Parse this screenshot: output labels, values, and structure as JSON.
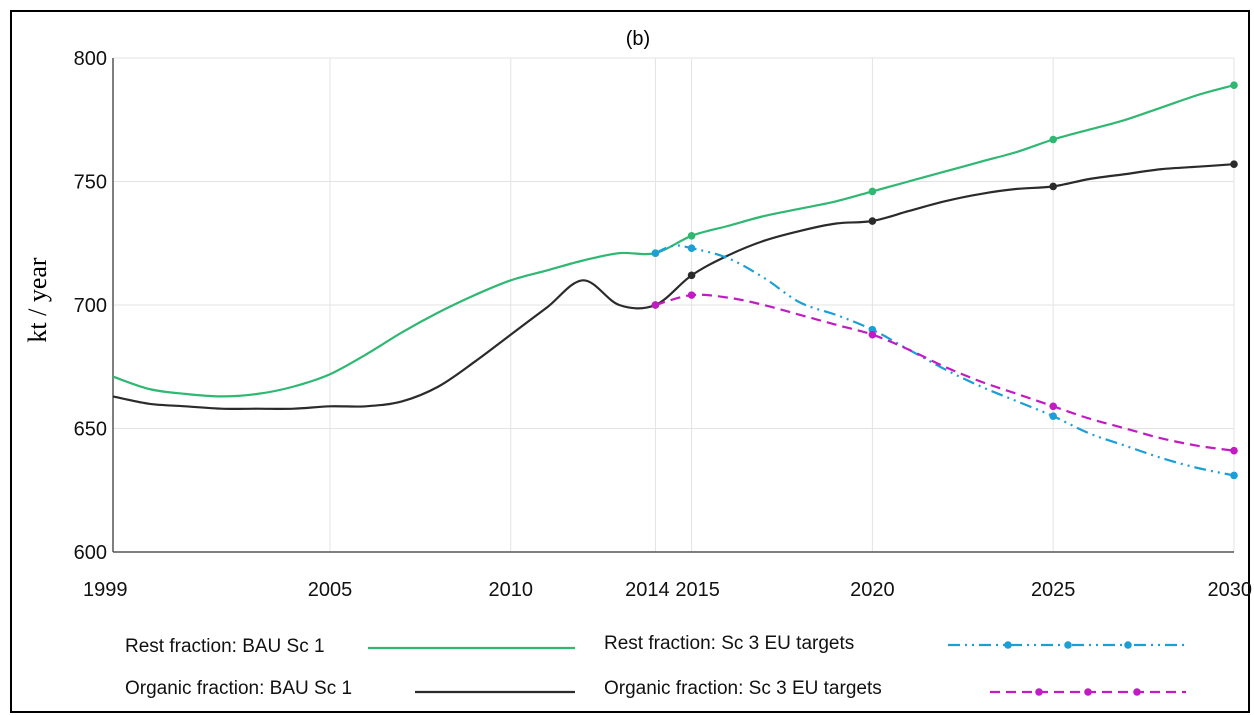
{
  "chart_data": {
    "type": "line",
    "title": "(b)",
    "ylabel": "kt / year",
    "xlabel": "",
    "xlim": [
      1999,
      2030
    ],
    "ylim": [
      600,
      800
    ],
    "x_ticks": [
      1999,
      2005,
      2010,
      2014,
      2015,
      2020,
      2025,
      2030
    ],
    "y_ticks": [
      600,
      650,
      700,
      750,
      800
    ],
    "grid": true,
    "legend_position": "bottom",
    "series": [
      {
        "name": "Rest fraction: BAU Sc 1",
        "color": "#2eb872",
        "dash": "solid",
        "x": [
          1999,
          2000,
          2001,
          2002,
          2003,
          2004,
          2005,
          2006,
          2007,
          2008,
          2009,
          2010,
          2011,
          2012,
          2013,
          2014,
          2015,
          2016,
          2017,
          2018,
          2019,
          2020,
          2021,
          2022,
          2023,
          2024,
          2025,
          2026,
          2027,
          2028,
          2029,
          2030
        ],
        "y": [
          671,
          666,
          664,
          663,
          664,
          667,
          672,
          680,
          689,
          697,
          704,
          710,
          714,
          718,
          721,
          721,
          728,
          732,
          736,
          739,
          742,
          746,
          750,
          754,
          758,
          762,
          767,
          771,
          775,
          780,
          785,
          789
        ],
        "markers_x": [
          2014,
          2015,
          2020,
          2025,
          2030
        ],
        "markers_y": [
          721,
          728,
          746,
          767,
          789
        ]
      },
      {
        "name": "Organic fraction: BAU Sc 1",
        "color": "#2b2b2b",
        "dash": "solid",
        "x": [
          1999,
          2000,
          2001,
          2002,
          2003,
          2004,
          2005,
          2006,
          2007,
          2008,
          2009,
          2010,
          2011,
          2012,
          2013,
          2014,
          2015,
          2016,
          2017,
          2018,
          2019,
          2020,
          2021,
          2022,
          2023,
          2024,
          2025,
          2026,
          2027,
          2028,
          2029,
          2030
        ],
        "y": [
          663,
          660,
          659,
          658,
          658,
          658,
          659,
          659,
          661,
          667,
          677,
          688,
          699,
          710,
          700,
          700,
          712,
          720,
          726,
          730,
          733,
          734,
          738,
          742,
          745,
          747,
          748,
          751,
          753,
          755,
          756,
          757
        ],
        "markers_x": [
          2014,
          2015,
          2020,
          2025,
          2030
        ],
        "markers_y": [
          700,
          712,
          734,
          748,
          757
        ]
      },
      {
        "name": "Rest fraction: Sc 3 EU targets",
        "color": "#1a9fd6",
        "dash": "dashdotdot",
        "x": [
          2014,
          2014.5,
          2015,
          2016,
          2017,
          2018,
          2019,
          2020,
          2021,
          2022,
          2023,
          2024,
          2025,
          2026,
          2027,
          2028,
          2029,
          2030
        ],
        "y": [
          721,
          724,
          723,
          719,
          711,
          701,
          696,
          690,
          682,
          674,
          667,
          661,
          655,
          648,
          643,
          638,
          634,
          631
        ],
        "markers_x": [
          2014,
          2015,
          2020,
          2025,
          2030
        ],
        "markers_y": [
          721,
          723,
          690,
          655,
          631
        ]
      },
      {
        "name": "Organic fraction: Sc 3  EU targets",
        "color": "#c21bc4",
        "dash": "dashed",
        "x": [
          2014,
          2015,
          2016,
          2017,
          2018,
          2019,
          2020,
          2021,
          2022,
          2023,
          2024,
          2025,
          2026,
          2027,
          2028,
          2029,
          2030
        ],
        "y": [
          700,
          704,
          703,
          700,
          696,
          692,
          688,
          682,
          675,
          669,
          664,
          659,
          654,
          650,
          646,
          643,
          641
        ],
        "markers_x": [
          2014,
          2015,
          2020,
          2025,
          2030
        ],
        "markers_y": [
          700,
          704,
          688,
          659,
          641
        ]
      }
    ]
  }
}
